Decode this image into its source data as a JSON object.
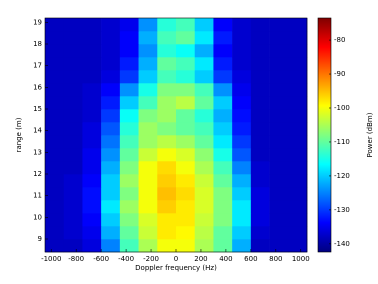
{
  "chart_data": {
    "type": "heatmap",
    "xlabel": "Doppler frequency (Hz)",
    "ylabel": "range (m)",
    "colorbar_label": "Power (dBm)",
    "colormap": "jet",
    "xlim": [
      -1050,
      1050
    ],
    "xticks": [
      -1000,
      -800,
      -600,
      -400,
      -200,
      0,
      200,
      400,
      600,
      800,
      1000
    ],
    "ylim": [
      8.4,
      19.2
    ],
    "yticks": [
      9,
      10,
      11,
      12,
      13,
      14,
      15,
      16,
      17,
      18,
      19
    ],
    "clim": [
      -142.4,
      -73.5
    ],
    "cticks": [
      -140,
      -130,
      -120,
      -110,
      -100,
      -90,
      -80
    ],
    "x_edges": [
      -1050,
      -900,
      -750,
      -600,
      -450,
      -300,
      -150,
      0,
      150,
      300,
      450,
      600,
      750,
      900,
      1050
    ],
    "y_edges": [
      8.4,
      9.0,
      9.6,
      10.2,
      10.8,
      11.4,
      12.0,
      12.6,
      13.2,
      13.8,
      14.4,
      15.0,
      15.6,
      16.2,
      16.8,
      17.4,
      18.0,
      18.6,
      19.2
    ],
    "z": [
      [
        -138,
        -138,
        -136,
        -125,
        -112,
        -105,
        -100,
        -100,
        -105,
        -110,
        -122,
        -138,
        -138,
        -138
      ],
      [
        -138,
        -137,
        -135,
        -122,
        -110,
        -103,
        -98,
        -99,
        -104,
        -110,
        -120,
        -137,
        -138,
        -138
      ],
      [
        -138,
        -137,
        -134,
        -120,
        -108,
        -102,
        -98,
        -98,
        -103,
        -108,
        -118,
        -136,
        -138,
        -138
      ],
      [
        -138,
        -137,
        -133,
        -118,
        -106,
        -100,
        -96,
        -98,
        -102,
        -108,
        -118,
        -136,
        -138,
        -138
      ],
      [
        -138,
        -137,
        -133,
        -120,
        -108,
        -100,
        -95,
        -97,
        -102,
        -108,
        -120,
        -136,
        -138,
        -138
      ],
      [
        -138,
        -137,
        -134,
        -120,
        -106,
        -100,
        -96,
        -98,
        -103,
        -110,
        -122,
        -137,
        -138,
        -138
      ],
      [
        -138,
        -138,
        -135,
        -122,
        -108,
        -100,
        -97,
        -100,
        -105,
        -112,
        -125,
        -137,
        -138,
        -138
      ],
      [
        -138,
        -138,
        -135,
        -124,
        -110,
        -103,
        -100,
        -102,
        -107,
        -115,
        -128,
        -138,
        -138,
        -138
      ],
      [
        -138,
        -138,
        -136,
        -126,
        -112,
        -106,
        -104,
        -106,
        -110,
        -118,
        -130,
        -138,
        -138,
        -138
      ],
      [
        -138,
        -138,
        -136,
        -128,
        -114,
        -106,
        -108,
        -110,
        -112,
        -120,
        -132,
        -138,
        -138,
        -138
      ],
      [
        -138,
        -138,
        -137,
        -130,
        -116,
        -108,
        -106,
        -110,
        -114,
        -122,
        -133,
        -138,
        -138,
        -138
      ],
      [
        -138,
        -138,
        -137,
        -132,
        -120,
        -112,
        -106,
        -104,
        -110,
        -120,
        -134,
        -138,
        -138,
        -138
      ],
      [
        -138,
        -138,
        -137,
        -134,
        -124,
        -115,
        -108,
        -108,
        -112,
        -124,
        -135,
        -138,
        -138,
        -138
      ],
      [
        -138,
        -138,
        -138,
        -136,
        -130,
        -120,
        -112,
        -114,
        -120,
        -130,
        -136,
        -138,
        -138,
        -138
      ],
      [
        -138,
        -138,
        -138,
        -137,
        -132,
        -122,
        -110,
        -112,
        -118,
        -132,
        -137,
        -138,
        -138,
        -138
      ],
      [
        -138,
        -138,
        -138,
        -137,
        -134,
        -124,
        -114,
        -116,
        -122,
        -134,
        -137,
        -138,
        -138,
        -138
      ],
      [
        -138,
        -138,
        -138,
        -137,
        -134,
        -122,
        -112,
        -110,
        -118,
        -132,
        -137,
        -138,
        -138,
        -138
      ],
      [
        -138,
        -138,
        -138,
        -137,
        -135,
        -124,
        -114,
        -112,
        -120,
        -134,
        -137,
        -138,
        -138,
        -138
      ]
    ]
  }
}
